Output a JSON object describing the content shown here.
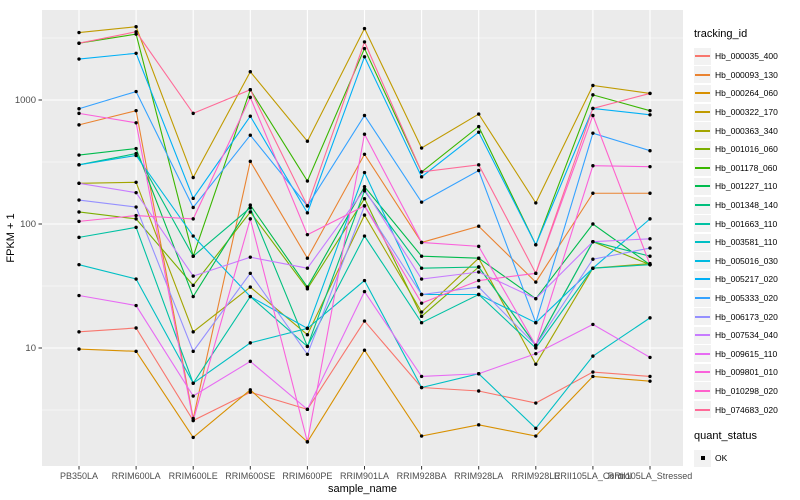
{
  "chart_data": {
    "type": "line",
    "title": "",
    "xlabel": "sample_name",
    "ylabel": "FPKM + 1",
    "yscale": "log10",
    "yticks": [
      10,
      100,
      1000
    ],
    "ylim": [
      1.1,
      5300
    ],
    "grid": true,
    "legend_position": "right",
    "legend_title": "tracking_id",
    "point_legend": {
      "title": "quant_status",
      "items": [
        {
          "label": "OK"
        }
      ]
    },
    "panel_bg": "#EBEBEB",
    "grid_color": "#FFFFFF",
    "point_color": "#000000",
    "axis_text_color": "#4D4D4D",
    "categories": [
      "PB350LA",
      "RRIM600LA",
      "RRIM600LE",
      "RRIM600SE",
      "RRIM600PE",
      "RRIM901LA",
      "RRIM928BA",
      "RRIM928LA",
      "RRIM928LE",
      "RRII105LA_Control",
      "RRII105LA_Stressed"
    ],
    "series": [
      {
        "name": "Hb_000035_400",
        "color": "#F8766D",
        "values": [
          13.5,
          14.5,
          2.6,
          4.4,
          3.2,
          16.5,
          4.8,
          4.5,
          3.6,
          6.4,
          5.9
        ]
      },
      {
        "name": "Hb_000093_130",
        "color": "#EA8331",
        "values": [
          630,
          820,
          2.7,
          320,
          53,
          365,
          71,
          96,
          34,
          177,
          177
        ]
      },
      {
        "name": "Hb_000264_060",
        "color": "#D89000",
        "values": [
          9.8,
          9.4,
          1.9,
          4.6,
          1.75,
          9.6,
          1.95,
          2.4,
          1.95,
          5.9,
          5.4
        ]
      },
      {
        "name": "Hb_000322_170",
        "color": "#C09B00",
        "values": [
          3500,
          3900,
          237,
          1690,
          465,
          3770,
          410,
          770,
          148,
          1310,
          1130
        ]
      },
      {
        "name": "Hb_000363_340",
        "color": "#A3A500",
        "values": [
          213,
          217,
          13.5,
          31,
          12.8,
          118,
          19.5,
          53,
          7.4,
          44,
          48
        ]
      },
      {
        "name": "Hb_001016_060",
        "color": "#7CAE00",
        "values": [
          125,
          110,
          32,
          125,
          30,
          160,
          18,
          45,
          10.5,
          72,
          47
        ]
      },
      {
        "name": "Hb_001178_060",
        "color": "#39B600",
        "values": [
          2870,
          3400,
          55,
          1210,
          222,
          2600,
          263,
          610,
          68,
          1100,
          820
        ]
      },
      {
        "name": "Hb_001227_110",
        "color": "#00BB4E",
        "values": [
          360,
          406,
          26,
          142,
          31,
          200,
          55,
          53,
          25,
          100,
          47
        ]
      },
      {
        "name": "Hb_001348_140",
        "color": "#00BF7D",
        "values": [
          300,
          370,
          55,
          135,
          10.3,
          185,
          44,
          45,
          10.5,
          72,
          55
        ]
      },
      {
        "name": "Hb_001663_110",
        "color": "#00C1A3",
        "values": [
          78,
          94,
          5.2,
          26,
          10.3,
          80,
          16,
          27,
          10,
          44,
          47
        ]
      },
      {
        "name": "Hb_003581_110",
        "color": "#00BFC4",
        "values": [
          47,
          36,
          5.2,
          11,
          14.4,
          35,
          4.8,
          6.2,
          2.25,
          8.6,
          17.5
        ]
      },
      {
        "name": "Hb_005016_030",
        "color": "#00BAE0",
        "values": [
          300,
          357,
          80,
          26,
          14.4,
          260,
          27,
          27,
          16,
          44,
          110
        ]
      },
      {
        "name": "Hb_005217_020",
        "color": "#00B0F6",
        "values": [
          2140,
          2380,
          161,
          740,
          123,
          2230,
          240,
          550,
          68,
          855,
          760
        ]
      },
      {
        "name": "Hb_005333_020",
        "color": "#35A2FF",
        "values": [
          850,
          1170,
          136,
          520,
          140,
          750,
          150,
          270,
          16,
          540,
          390
        ]
      },
      {
        "name": "Hb_006173_020",
        "color": "#9590FF",
        "values": [
          156,
          137,
          9.4,
          40,
          8.9,
          140,
          27,
          31,
          10.5,
          52,
          64
        ]
      },
      {
        "name": "Hb_007534_040",
        "color": "#C77CFF",
        "values": [
          213,
          179,
          38,
          54,
          44,
          190,
          36,
          41,
          25,
          72,
          76
        ]
      },
      {
        "name": "Hb_009615_110",
        "color": "#E76BF3",
        "values": [
          26.5,
          22,
          4.1,
          7.8,
          3.2,
          28.5,
          5.9,
          6.2,
          9,
          15.5,
          8.4
        ]
      },
      {
        "name": "Hb_009801_010",
        "color": "#FA62DB",
        "values": [
          780,
          655,
          2.6,
          110,
          1.75,
          530,
          71,
          66,
          10.5,
          295,
          290
        ]
      },
      {
        "name": "Hb_010298_020",
        "color": "#FF61CC",
        "values": [
          105,
          117,
          110,
          1050,
          82,
          140,
          23,
          35,
          40,
          750,
          47
        ]
      },
      {
        "name": "Hb_074683_020",
        "color": "#FF6A98",
        "values": [
          2870,
          3550,
          780,
          1210,
          140,
          2940,
          263,
          300,
          40,
          855,
          1130
        ]
      }
    ]
  }
}
